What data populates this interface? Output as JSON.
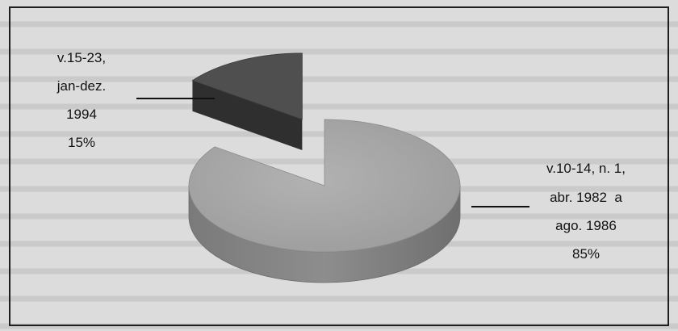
{
  "chart_data": {
    "type": "pie",
    "title": "",
    "slices": [
      {
        "label_lines": [
          "v.10-14, n. 1,",
          "abr. 1982  a",
          "ago. 1986"
        ],
        "percent_label": "85%",
        "value": 85,
        "color": "#a3a3a3"
      },
      {
        "label_lines": [
          "v.15-23,",
          "jan-dez.",
          "1994"
        ],
        "percent_label": "15%",
        "value": 15,
        "color": "#4f4f4f"
      }
    ],
    "style": "3d-exploded",
    "legend": "none"
  }
}
